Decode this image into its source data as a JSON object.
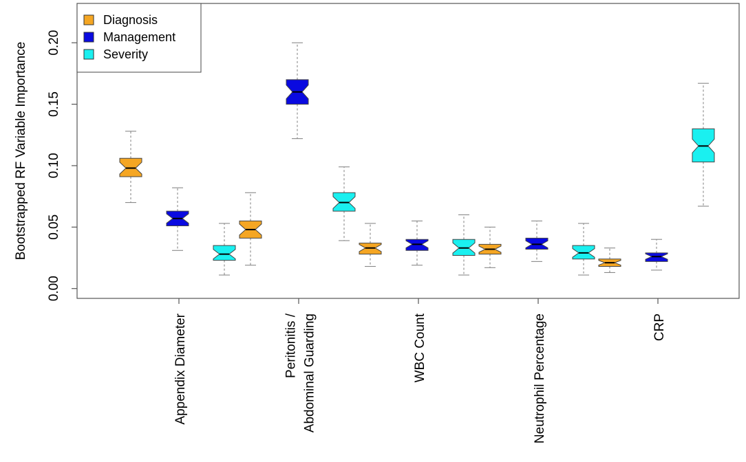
{
  "chart_data": {
    "type": "boxplot",
    "title": "",
    "xlabel": "",
    "ylabel": "Bootstrapped RF Variable Importance",
    "ylim": [
      -0.008,
      0.232
    ],
    "yticks": [
      "0.00",
      "0.05",
      "0.10",
      "0.15",
      "0.20"
    ],
    "ytick_values": [
      0.0,
      0.05,
      0.1,
      0.15,
      0.2
    ],
    "categories": [
      {
        "label": "Appendix Diameter",
        "lines": [
          "Appendix Diameter"
        ]
      },
      {
        "label": "Peritonitis / Abdominal Guarding",
        "lines": [
          "Peritonitis /",
          "Abdominal Guarding"
        ]
      },
      {
        "label": "WBC Count",
        "lines": [
          "WBC Count"
        ]
      },
      {
        "label": "Neutrophil Percentage",
        "lines": [
          "Neutrophil Percentage"
        ]
      },
      {
        "label": "CRP",
        "lines": [
          "CRP"
        ]
      }
    ],
    "legend_position": "top-left",
    "series": [
      {
        "name": "Diagnosis",
        "color": "#F5A623",
        "stats": [
          {
            "min": 0.07,
            "q1": 0.091,
            "median": 0.098,
            "q3": 0.106,
            "max": 0.128
          },
          {
            "min": 0.019,
            "q1": 0.041,
            "median": 0.048,
            "q3": 0.055,
            "max": 0.078
          },
          {
            "min": 0.018,
            "q1": 0.028,
            "median": 0.033,
            "q3": 0.037,
            "max": 0.053
          },
          {
            "min": 0.017,
            "q1": 0.028,
            "median": 0.032,
            "q3": 0.036,
            "max": 0.05
          },
          {
            "min": 0.013,
            "q1": 0.018,
            "median": 0.021,
            "q3": 0.024,
            "max": 0.033
          }
        ]
      },
      {
        "name": "Management",
        "color": "#0A0AE0",
        "stats": [
          {
            "min": 0.031,
            "q1": 0.051,
            "median": 0.057,
            "q3": 0.063,
            "max": 0.082
          },
          {
            "min": 0.122,
            "q1": 0.15,
            "median": 0.16,
            "q3": 0.17,
            "max": 0.2
          },
          {
            "min": 0.019,
            "q1": 0.031,
            "median": 0.036,
            "q3": 0.04,
            "max": 0.055
          },
          {
            "min": 0.022,
            "q1": 0.032,
            "median": 0.036,
            "q3": 0.041,
            "max": 0.055
          },
          {
            "min": 0.015,
            "q1": 0.022,
            "median": 0.026,
            "q3": 0.029,
            "max": 0.04
          }
        ]
      },
      {
        "name": "Severity",
        "color": "#1AF0F0",
        "stats": [
          {
            "min": 0.011,
            "q1": 0.023,
            "median": 0.028,
            "q3": 0.035,
            "max": 0.053
          },
          {
            "min": 0.039,
            "q1": 0.063,
            "median": 0.07,
            "q3": 0.078,
            "max": 0.099
          },
          {
            "min": 0.011,
            "q1": 0.027,
            "median": 0.033,
            "q3": 0.04,
            "max": 0.06
          },
          {
            "min": 0.011,
            "q1": 0.024,
            "median": 0.029,
            "q3": 0.035,
            "max": 0.053
          },
          {
            "min": 0.067,
            "q1": 0.103,
            "median": 0.116,
            "q3": 0.13,
            "max": 0.167
          }
        ]
      }
    ]
  }
}
